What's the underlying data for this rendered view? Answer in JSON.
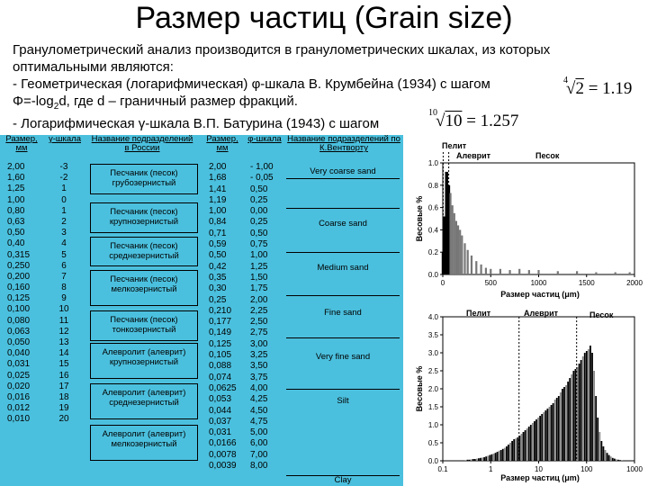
{
  "title": "Размер частиц (Grain size)",
  "intro": {
    "line1": "Гранулометрический анализ производится в гранулометрических шкалах, из которых",
    "line2": "оптимальными являются:",
    "line3": "- Геометрическая (логарифмическая) φ-шкала В. Крумбейна (1934) с шагом",
    "line4_pre": "Φ=-log",
    "line4_sub": "2",
    "line4_post": "d, где d – граничный размер фракций.",
    "line5": "- Логарифмическая γ-шкала В.П. Батурина (1943) с шагом",
    "formula1_index": "4",
    "formula1_radicand": "2",
    "formula1_value": " = 1.19",
    "formula2_index": "10",
    "formula2_radicand": "10",
    "formula2_value": " = 1.257"
  },
  "table": {
    "headers": {
      "size_mm_left": "Размер, мм",
      "gamma": "γ-шкала",
      "names_ru": "Название подразделений в России",
      "size_mm_right": "Размер, мм",
      "phi": "φ-шкала",
      "names_en": "Название подразделений по К.Вентворту"
    },
    "sizes_left": [
      "2,00",
      "1,60",
      "1,25",
      "1,00",
      "0,80",
      "0,63",
      "0,50",
      "0,40",
      "0,315",
      "0,250",
      "0,200",
      "0,160",
      "0,125",
      "0,100",
      "0,080",
      "0,063",
      "0,050",
      "0,040",
      "0,031",
      "0,025",
      "0,020",
      "0,016",
      "0,012",
      "0,010"
    ],
    "gamma": [
      "-3",
      "-2",
      "1",
      "0",
      "1",
      "2",
      "3",
      "4",
      "5",
      "6",
      "7",
      "8",
      "9",
      "10",
      "11",
      "12",
      "13",
      "14",
      "15",
      "16",
      "17",
      "18",
      "19",
      "20"
    ],
    "sizes_right": [
      "2,00",
      "1,68",
      "1,41",
      "1,19",
      "1,00",
      "0,84",
      "0,71",
      "0,59",
      "0,50",
      "0,42",
      "0,35",
      "0,30",
      "0,25",
      "0,210",
      "0,177",
      "0,149",
      "0,125",
      "0,105",
      "0,088",
      "0,074",
      "0,0625",
      "0,053",
      "0,044",
      "0,037",
      "0,031",
      "0,0166",
      "0,0078",
      "0,0039"
    ],
    "phi": [
      "- 1,00",
      "- 0,05",
      "0,50",
      "0,25",
      "0,00",
      "0,25",
      "0,50",
      "0,75",
      "1,00",
      "1,25",
      "1,50",
      "1,75",
      "2,00",
      "2,25",
      "2,50",
      "2,75",
      "3,00",
      "3,25",
      "3,50",
      "3,75",
      "4,00",
      "4,25",
      "4,50",
      "4,75",
      "5,00",
      "6,00",
      "7,00",
      "8,00"
    ],
    "ru_groups": [
      {
        "line1": "Песчаник (песок)",
        "line2": "грубозернистый"
      },
      {
        "line1": "Песчаник (песок)",
        "line2": "крупнозернистый"
      },
      {
        "line1": "Песчаник (песок)",
        "line2": "среднезернистый"
      },
      {
        "line1": "Песчаник (песок)",
        "line2": "мелкозернистый"
      },
      {
        "line1": "Песчаник (песок)",
        "line2": "тонкозернистый"
      },
      {
        "line1": "Алевролит (алеврит)",
        "line2": "крупнозернистый"
      },
      {
        "line1": "Алевролит (алеврит)",
        "line2": "среднезернистый"
      },
      {
        "line1": "Алевролит (алеврит)",
        "line2": "мелкозернистый"
      }
    ],
    "en_labels": [
      "Very coarse sand",
      "Coarse sand",
      "Medium sand",
      "Fine sand",
      "Very fine sand",
      "Silt",
      "Clay"
    ]
  },
  "chart_data": [
    {
      "type": "bar",
      "xlabel": "Размер частиц (μm)",
      "ylabel": "Весовые %",
      "xlim": [
        0,
        2000
      ],
      "ylim": [
        0,
        1.0
      ],
      "x_ticks": [
        "0",
        "500",
        "1000",
        "1500",
        "2000"
      ],
      "y_ticks": [
        "0.0",
        "0.2",
        "0.4",
        "0.6",
        "0.8",
        "1.0"
      ],
      "region_labels": [
        "Пелит",
        "Алеврит",
        "Песок"
      ],
      "series": [
        {
          "x": [
            5,
            20,
            40,
            60,
            80,
            100,
            120,
            140,
            160,
            180,
            200,
            230,
            260,
            300,
            350,
            400,
            450,
            500,
            600,
            700,
            800,
            900,
            1000,
            1200,
            1400,
            1600,
            1800,
            1950
          ],
          "values": [
            0.2,
            0.52,
            0.92,
            0.8,
            0.73,
            0.62,
            0.55,
            0.48,
            0.44,
            0.4,
            0.35,
            0.28,
            0.22,
            0.17,
            0.12,
            0.09,
            0.06,
            0.05,
            0.05,
            0.04,
            0.05,
            0.04,
            0.04,
            0.03,
            0.03,
            0.02,
            0.02,
            0.02
          ]
        }
      ]
    },
    {
      "type": "bar",
      "xlabel": "Размер частиц (μm)",
      "ylabel": "Весовые %",
      "xscale": "log",
      "xlim": [
        0.1,
        1000
      ],
      "ylim": [
        0,
        4.0
      ],
      "x_ticks": [
        "0.1",
        "1",
        "10",
        "100",
        "1000"
      ],
      "y_ticks": [
        "0.0",
        "0.5",
        "1.0",
        "1.5",
        "2.0",
        "2.5",
        "3.0",
        "3.5",
        "4.0"
      ],
      "region_labels": [
        "Пелит",
        "Алеврит",
        "Песок"
      ],
      "series": [
        {
          "values": [
            0.02,
            0.03,
            0.03,
            0.04,
            0.05,
            0.05,
            0.06,
            0.07,
            0.08,
            0.09,
            0.1,
            0.12,
            0.14,
            0.16,
            0.18,
            0.2,
            0.22,
            0.25,
            0.28,
            0.3,
            0.33,
            0.36,
            0.4,
            0.45,
            0.5,
            0.55,
            0.6,
            0.62,
            0.65,
            0.7,
            0.75,
            0.8,
            0.85,
            0.9,
            0.95,
            1.0,
            1.05,
            1.1,
            1.15,
            1.2,
            1.25,
            1.3,
            1.35,
            1.4,
            1.45,
            1.5,
            1.55,
            1.6,
            1.7,
            1.75,
            1.8,
            1.9,
            2.0,
            2.05,
            2.1,
            2.2,
            2.3,
            2.4,
            2.5,
            2.55,
            2.6,
            2.7,
            2.8,
            2.9,
            3.0,
            3.05,
            3.1,
            3.2,
            3.0,
            2.5,
            1.8,
            1.2,
            0.8,
            0.55,
            0.4,
            0.3,
            0.22,
            0.16,
            0.12,
            0.08,
            0.06,
            0.04,
            0.03,
            0.02,
            0.02,
            0.01
          ]
        }
      ]
    }
  ]
}
